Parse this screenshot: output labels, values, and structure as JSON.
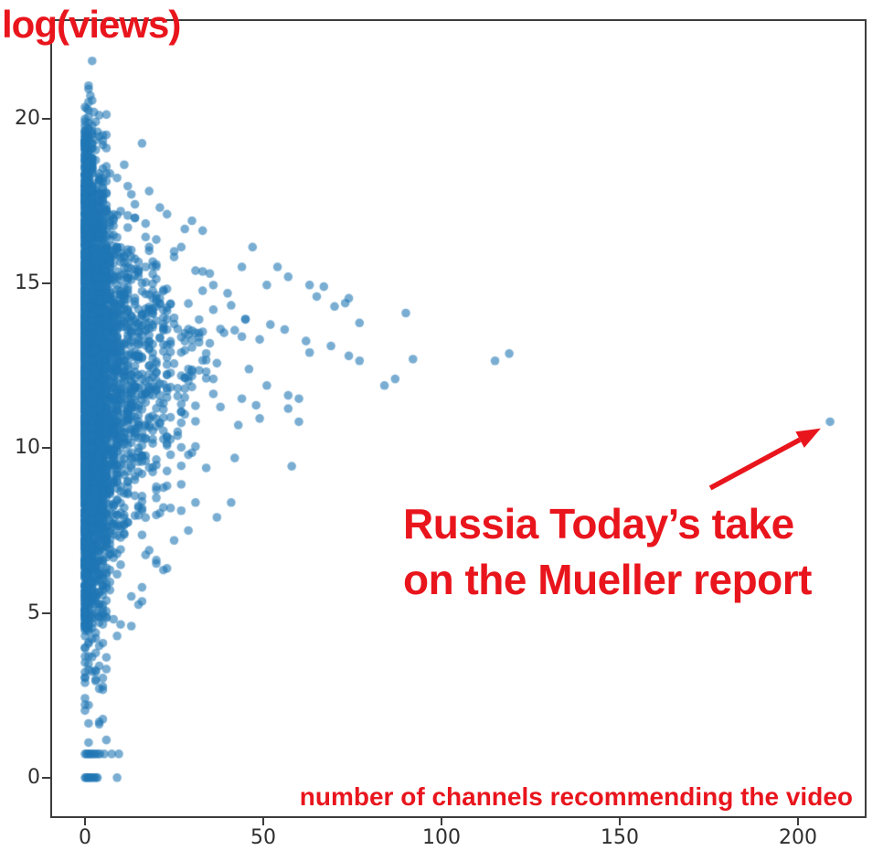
{
  "figure": {
    "background": "#ffffff",
    "accent_red": "#e9151d",
    "axis_color": "#3c3c3c",
    "tick_label_color": "#2f2f2f"
  },
  "chart_data": {
    "type": "scatter",
    "title": "",
    "ylabel": "log(views)",
    "xlabel": "number of channels recommending the video",
    "x_ticks": [
      0,
      50,
      100,
      150,
      200
    ],
    "y_ticks": [
      0,
      5,
      10,
      15,
      20
    ],
    "xlim": [
      -9.23,
      219.23
    ],
    "ylim": [
      -1.17,
      22.99
    ],
    "grid": false,
    "legend": null,
    "point_color": "#1f77b4",
    "point_alpha": 0.6,
    "point_radius_px": 4.8,
    "annotation": {
      "line1": "Russia Today’s take",
      "line2": "on the Mueller report",
      "target_point": [
        209,
        10.8
      ],
      "arrow_tail": [
        175.4,
        8.79
      ],
      "arrow_tip": [
        206.4,
        10.6
      ]
    },
    "outlier": [
      209,
      10.8
    ],
    "fringe_points": [
      [
        115,
        12.65
      ],
      [
        119,
        12.87
      ],
      [
        90,
        14.1
      ],
      [
        92,
        12.7
      ],
      [
        87,
        12.1
      ],
      [
        84,
        11.9
      ],
      [
        77,
        13.8
      ],
      [
        77,
        12.65
      ],
      [
        74,
        14.55
      ],
      [
        74,
        12.8
      ],
      [
        73,
        14.4
      ],
      [
        70,
        14.3
      ],
      [
        69,
        13.1
      ],
      [
        67,
        14.9
      ],
      [
        65,
        14.6
      ],
      [
        63,
        14.95
      ],
      [
        63,
        12.9
      ],
      [
        62,
        13.25
      ],
      [
        57,
        15.2
      ],
      [
        54,
        15.5
      ],
      [
        51,
        14.95
      ],
      [
        52,
        13.75
      ],
      [
        56,
        13.6
      ],
      [
        57,
        11.6
      ],
      [
        60,
        11.5
      ],
      [
        57,
        11.2
      ],
      [
        60,
        10.8
      ],
      [
        58,
        9.45
      ],
      [
        48,
        11.3
      ],
      [
        49,
        10.9
      ],
      [
        47,
        16.1
      ],
      [
        44,
        15.5
      ],
      [
        43,
        10.7
      ],
      [
        42,
        9.7
      ],
      [
        38,
        11.25
      ],
      [
        41,
        8.35
      ],
      [
        33,
        16.6
      ],
      [
        31,
        8.35
      ],
      [
        31,
        10.05
      ],
      [
        30,
        16.9
      ],
      [
        28,
        16.65
      ],
      [
        27,
        16.1
      ],
      [
        27,
        8.9
      ],
      [
        23,
        17.1
      ],
      [
        22,
        8.8
      ],
      [
        22,
        8.2
      ],
      [
        22,
        6.3
      ],
      [
        21,
        17.3
      ],
      [
        20,
        6.6
      ],
      [
        23,
        6.35
      ],
      [
        20,
        6.5
      ],
      [
        16,
        5.35
      ],
      [
        13,
        5.5
      ],
      [
        15,
        5.25
      ],
      [
        16,
        19.25
      ],
      [
        12,
        17.95
      ],
      [
        13,
        17.7
      ],
      [
        10,
        4.65
      ],
      [
        13,
        4.6
      ],
      [
        9,
        4.3
      ],
      [
        9,
        18.2
      ],
      [
        6,
        18.1
      ],
      [
        4,
        2.7
      ],
      [
        14,
        17.4
      ],
      [
        18,
        17.8
      ],
      [
        11,
        18.6
      ],
      [
        25,
        15.8
      ],
      [
        35,
        15.3
      ],
      [
        36,
        14.2
      ],
      [
        39,
        13.5
      ],
      [
        45,
        13.9
      ],
      [
        49,
        13.3
      ],
      [
        46,
        12.4
      ],
      [
        51,
        11.9
      ],
      [
        44,
        11.5
      ],
      [
        36,
        12.1
      ],
      [
        34,
        9.4
      ],
      [
        37,
        7.9
      ],
      [
        29,
        7.5
      ],
      [
        25,
        7.2
      ],
      [
        18,
        6.9
      ],
      [
        24,
        9.8
      ],
      [
        26,
        10.5
      ],
      [
        28,
        11.8
      ],
      [
        32,
        13.9
      ],
      [
        40,
        14.7
      ]
    ],
    "top_points": [
      [
        2,
        21.75
      ],
      [
        1,
        21.0
      ],
      [
        1,
        20.9
      ],
      [
        1.5,
        20.7
      ],
      [
        2,
        20.55
      ],
      [
        1,
        20.5
      ],
      [
        0.5,
        20.3
      ],
      [
        2.5,
        20.2
      ],
      [
        1,
        20.05
      ],
      [
        3,
        19.9
      ],
      [
        2,
        19.8
      ],
      [
        1,
        19.7
      ],
      [
        3.5,
        19.6
      ],
      [
        2,
        19.55
      ],
      [
        4,
        19.45
      ],
      [
        3,
        19.35
      ],
      [
        5,
        19.2
      ],
      [
        2,
        19.1
      ]
    ],
    "bottom_rows": [
      {
        "y": 0.72,
        "x": [
          0,
          0.4,
          0.8,
          1.2,
          1.6,
          2,
          2.5,
          3,
          3.6,
          4.2,
          5.4,
          7.5,
          9.5
        ]
      },
      {
        "y": 0,
        "x": [
          0,
          0.3,
          0.6,
          0.9,
          1.2,
          1.5,
          1.9,
          2.3,
          2.7,
          3.1,
          3.5,
          9
        ]
      }
    ],
    "cloud": {
      "comment": "dense cloud of ~4000 unlabeled videos, x = integer channel count concentrated near 0, y = log(views) mostly 4-20",
      "seed": 7,
      "n_main": 3000,
      "n_core": 1000,
      "y_mean": 12.0,
      "y_sd": 3.3,
      "y_min": 4.2,
      "y_max": 19.9,
      "core_y_mean": 12.2,
      "core_y_sd": 4.6,
      "core_y_min": 0.9,
      "core_y_max": 20.4,
      "core_x_max": 7,
      "envelope": [
        [
          4.2,
          9
        ],
        [
          5,
          14
        ],
        [
          6,
          21
        ],
        [
          7,
          26
        ],
        [
          8,
          32
        ],
        [
          9,
          36
        ],
        [
          10,
          42
        ],
        [
          11,
          48
        ],
        [
          12,
          52
        ],
        [
          13,
          57
        ],
        [
          14,
          58
        ],
        [
          15,
          46
        ],
        [
          16,
          36
        ],
        [
          17,
          26
        ],
        [
          18,
          15
        ],
        [
          19,
          7
        ],
        [
          19.9,
          3
        ]
      ]
    }
  }
}
